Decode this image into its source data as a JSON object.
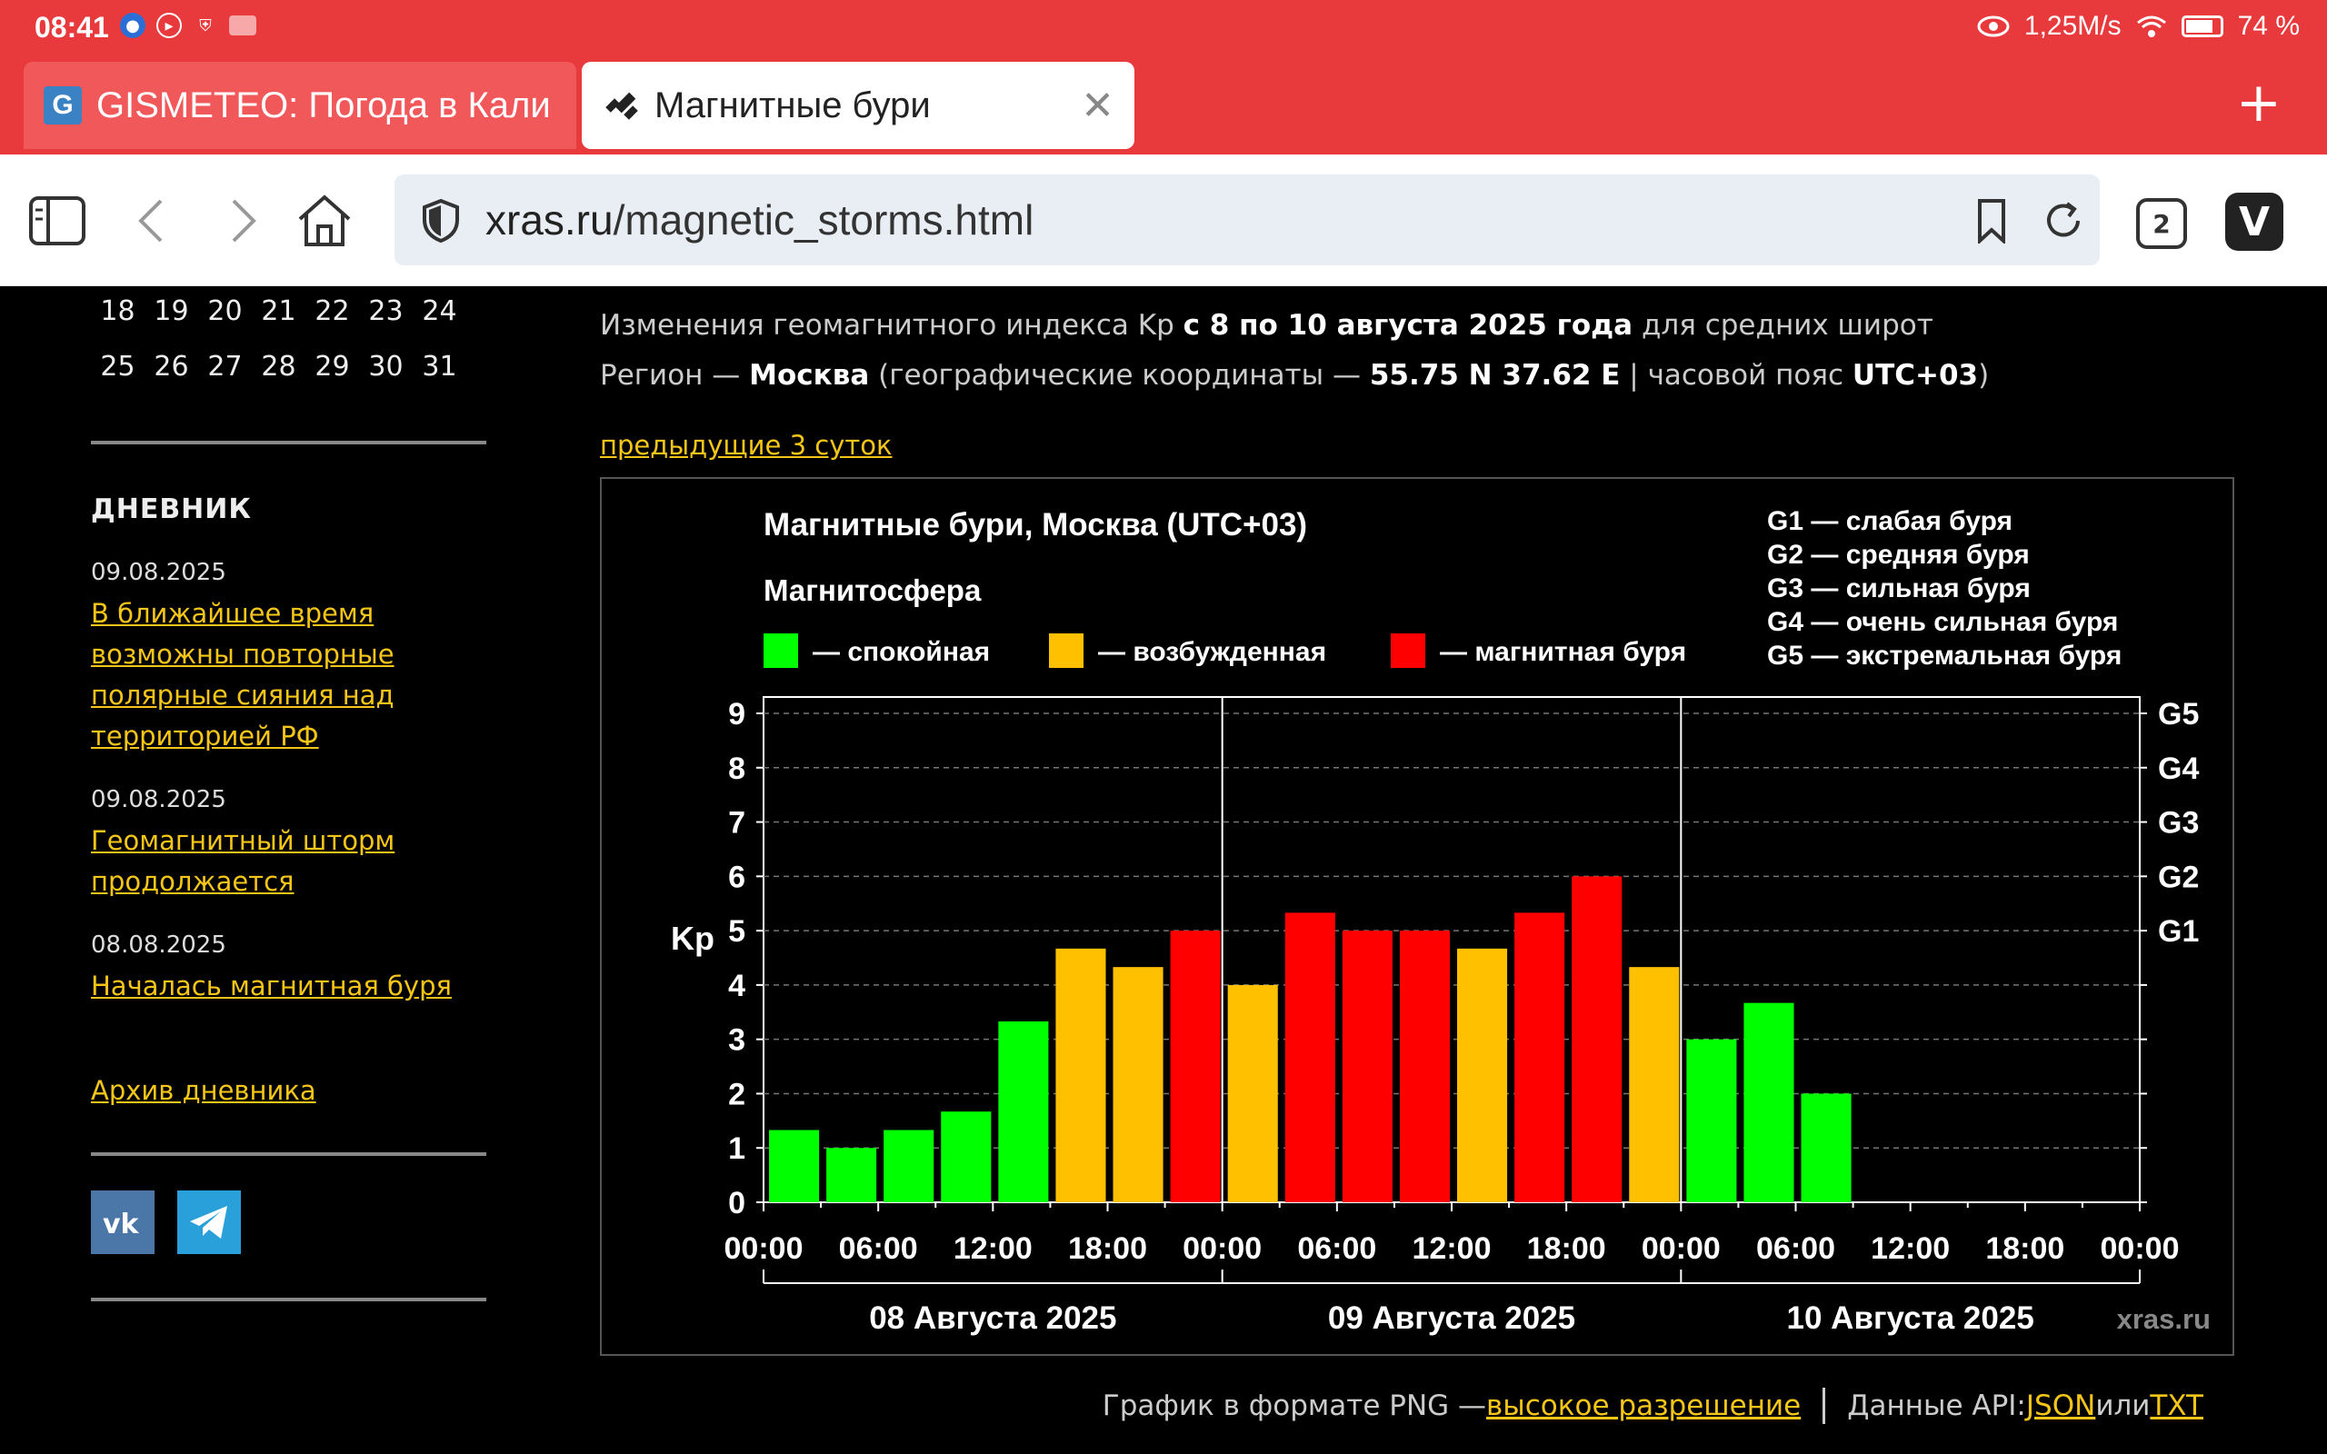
{
  "status": {
    "time": "08:41",
    "network": "1,25M/s",
    "battery": "74 %",
    "battery_level": 0.74
  },
  "tabs": [
    {
      "label": "GISMETEO: Погода в Кали",
      "favicon": "gismeteo-icon",
      "active": false
    },
    {
      "label": "Магнитные бури",
      "favicon": "satellite-icon",
      "active": true
    }
  ],
  "toolbar": {
    "url_host": "xras.ru",
    "url_path": "/magnetic_storms.html",
    "tab_count": "2"
  },
  "calendar": {
    "rows": [
      [
        "18",
        "19",
        "20",
        "21",
        "22",
        "23",
        "24"
      ],
      [
        "25",
        "26",
        "27",
        "28",
        "29",
        "30",
        "31"
      ]
    ]
  },
  "sidebar": {
    "diary_heading": "ДНЕВНИК",
    "entries": [
      {
        "date": "09.08.2025",
        "title": "В ближайшее время возможны повторные полярные сияния над территорией РФ"
      },
      {
        "date": "09.08.2025",
        "title": "Геомагнитный шторм продолжается"
      },
      {
        "date": "08.08.2025",
        "title": "Началась магнитная буря"
      }
    ],
    "archive_link": "Архив дневника",
    "social": [
      "vk-icon",
      "telegram-icon"
    ]
  },
  "main": {
    "line1_pre": "Изменения геомагнитного индекса Kp ",
    "line1_bold": "с 8 по 10 августа 2025 года",
    "line1_post": " для средних широт",
    "line2_pre": "Регион — ",
    "line2_region": "Москва",
    "line2_mid": " (географические координаты — ",
    "line2_coords": "55.75 N 37.62 E",
    "line2_tz_pre": " | часовой пояс ",
    "line2_tz": "UTC+03",
    "line2_end": ")",
    "prev_link": "предыдущие 3 суток"
  },
  "chart_data": {
    "type": "bar",
    "title": "Магнитные бури, Москва (UTC+03)",
    "legend_title": "Магнитосфера",
    "legend": [
      {
        "name": "— спокойная",
        "color": "#00ff00"
      },
      {
        "name": "— возбужденная",
        "color": "#ffc000"
      },
      {
        "name": "— магнитная буря",
        "color": "#ff0000"
      }
    ],
    "g_scale": [
      "G1 — слабая буря",
      "G2 — средняя буря",
      "G3 — сильная буря",
      "G4 — очень сильная буря",
      "G5 — экстремальная буря"
    ],
    "ylabel": "Kp",
    "ylim": [
      0,
      9
    ],
    "yticks": [
      "0",
      "1",
      "2",
      "3",
      "4",
      "5",
      "6",
      "7",
      "8",
      "9"
    ],
    "right_ticks": [
      {
        "label": "G1",
        "value": 5
      },
      {
        "label": "G2",
        "value": 6
      },
      {
        "label": "G3",
        "value": 7
      },
      {
        "label": "G4",
        "value": 8
      },
      {
        "label": "G5",
        "value": 9
      }
    ],
    "x_ticks": [
      "00:00",
      "06:00",
      "12:00",
      "18:00",
      "00:00",
      "06:00",
      "12:00",
      "18:00",
      "00:00",
      "06:00",
      "12:00",
      "18:00",
      "00:00"
    ],
    "days": [
      "08 Августа 2025",
      "09 Августа 2025",
      "10 Августа 2025"
    ],
    "watermark": "xras.ru",
    "values": [
      1.33,
      1.0,
      1.33,
      1.67,
      3.33,
      4.67,
      4.33,
      5.0,
      4.0,
      5.33,
      5.0,
      5.0,
      4.67,
      5.33,
      6.0,
      4.33,
      3.0,
      3.67,
      2.0
    ],
    "levels": [
      "calm",
      "calm",
      "calm",
      "calm",
      "calm",
      "active",
      "active",
      "storm",
      "active",
      "storm",
      "storm",
      "storm",
      "active",
      "storm",
      "storm",
      "active",
      "calm",
      "calm",
      "calm"
    ],
    "total_slots": 24
  },
  "footer": {
    "png_label": "График в формате PNG — ",
    "hires_link": "высокое разрешение",
    "api_label": "Данные API: ",
    "json_link": "JSON",
    "or": " или ",
    "txt_link": "TXT"
  }
}
